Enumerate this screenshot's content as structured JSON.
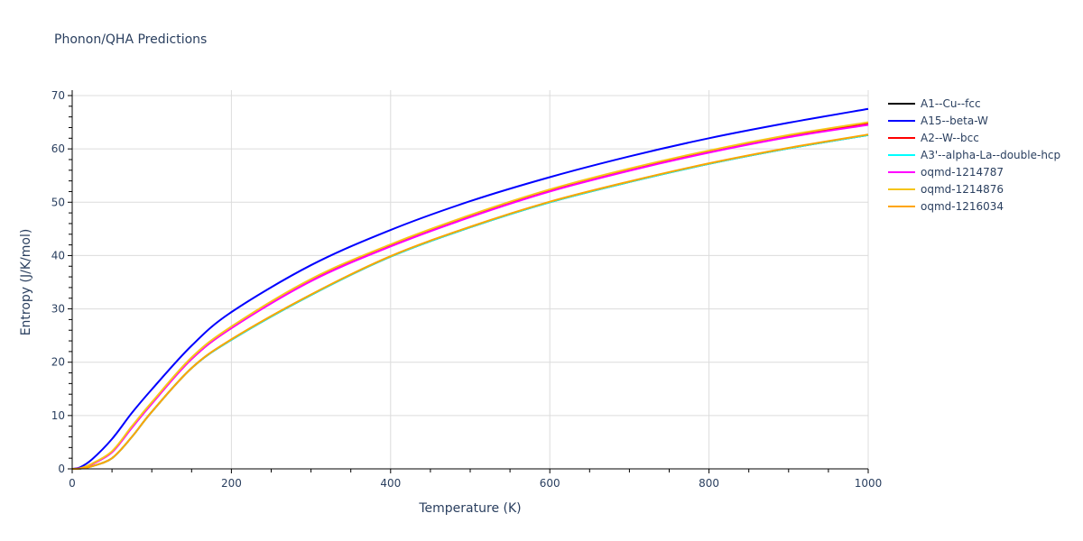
{
  "title": "Phonon/QHA Predictions",
  "chart_data": {
    "type": "line",
    "title": "Phonon/QHA Predictions",
    "xlabel": "Temperature (K)",
    "ylabel": "Entropy (J/K/mol)",
    "xlim": [
      0,
      1000
    ],
    "ylim": [
      0,
      70
    ],
    "xticks": [
      0,
      200,
      400,
      600,
      800,
      1000
    ],
    "yticks": [
      0,
      10,
      20,
      30,
      40,
      50,
      60,
      70
    ],
    "grid": true,
    "legend_position": "right",
    "x": [
      0,
      10,
      25,
      50,
      75,
      100,
      150,
      200,
      300,
      400,
      500,
      600,
      700,
      800,
      900,
      1000
    ],
    "series": [
      {
        "name": "A1--Cu--fcc",
        "color": "#000000",
        "values": [
          0,
          0.05,
          0.5,
          2.0,
          6.0,
          10.7,
          18.9,
          24.2,
          32.6,
          39.8,
          45.3,
          50.0,
          53.8,
          57.2,
          60.1,
          62.6
        ]
      },
      {
        "name": "A15--beta-W",
        "color": "#0000ff",
        "values": [
          0,
          0.3,
          1.8,
          5.6,
          10.5,
          14.9,
          23.1,
          29.4,
          38.2,
          44.8,
          50.2,
          54.7,
          58.6,
          62.0,
          64.9,
          67.5
        ]
      },
      {
        "name": "A2--W--bcc",
        "color": "#ff0000",
        "values": [
          0,
          0.1,
          0.9,
          3.2,
          7.8,
          12.3,
          20.6,
          26.4,
          35.3,
          41.8,
          47.3,
          52.1,
          56.0,
          59.4,
          62.3,
          64.7
        ]
      },
      {
        "name": "A3'--alpha-La--double-hcp",
        "color": "#00ffff",
        "values": [
          0,
          0.05,
          0.5,
          2.0,
          6.0,
          10.7,
          18.9,
          24.2,
          32.6,
          39.8,
          45.3,
          50.0,
          53.8,
          57.2,
          60.1,
          62.6
        ]
      },
      {
        "name": "oqmd-1214787",
        "color": "#ff00ff",
        "values": [
          0,
          0.1,
          0.9,
          3.1,
          7.7,
          12.2,
          20.6,
          26.4,
          35.2,
          41.7,
          47.2,
          52.0,
          55.9,
          59.3,
          62.2,
          64.5
        ]
      },
      {
        "name": "oqmd-1214876",
        "color": "#f5c518",
        "values": [
          0,
          0.1,
          1.0,
          3.3,
          8.0,
          12.5,
          20.9,
          26.7,
          35.6,
          42.1,
          47.6,
          52.4,
          56.3,
          59.7,
          62.6,
          65.0
        ]
      },
      {
        "name": "oqmd-1216034",
        "color": "#ffa500",
        "values": [
          0,
          0.05,
          0.5,
          2.0,
          6.0,
          10.7,
          18.9,
          24.3,
          32.7,
          39.9,
          45.4,
          50.1,
          53.9,
          57.3,
          60.2,
          62.7
        ]
      }
    ]
  }
}
